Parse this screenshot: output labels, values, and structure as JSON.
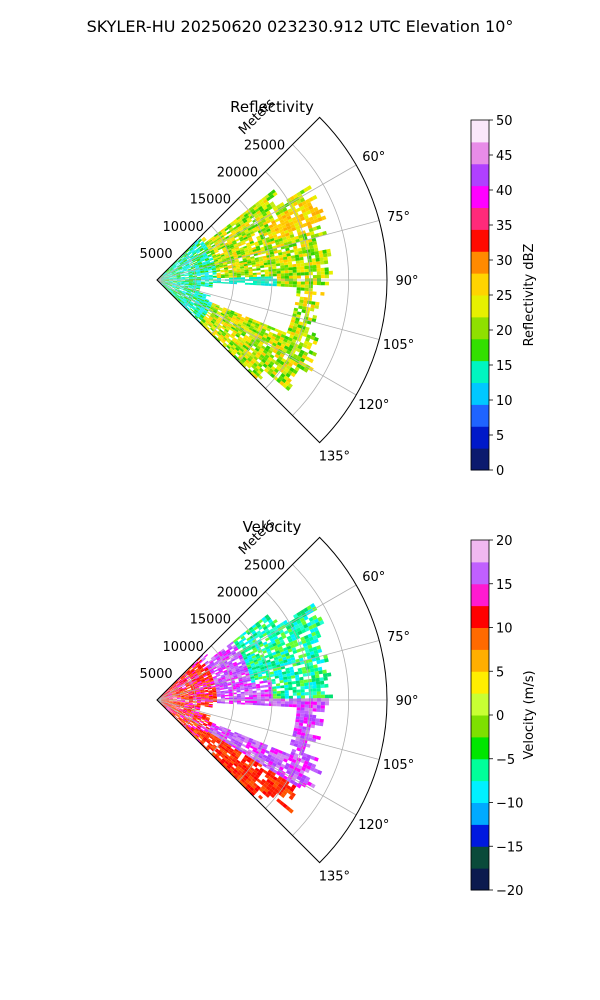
{
  "suptitle": "SKYLER-HU  20250620  023230.912 UTC Elevation 10°",
  "chart_data": [
    {
      "type": "polar-sector",
      "title": "Reflectivity",
      "radial_label": "Meters",
      "r_ticks": [
        "5000",
        "10000",
        "15000",
        "20000",
        "25000"
      ],
      "r_values": [
        5000,
        10000,
        15000,
        20000,
        25000
      ],
      "r_max": 30000,
      "theta_range_deg": [
        45,
        135
      ],
      "theta_ticks": [
        "60°",
        "75°",
        "90°",
        "105°",
        "120°",
        "135°"
      ],
      "theta_values": [
        60,
        75,
        90,
        105,
        120,
        135
      ],
      "grid": true,
      "colorbar": {
        "label": "Reflectivity dBZ",
        "ticks": [
          "0",
          "5",
          "10",
          "15",
          "20",
          "25",
          "30",
          "35",
          "40",
          "45",
          "50"
        ],
        "min": 0,
        "max": 50,
        "colors": [
          "#0b1a6e",
          "#0019c9",
          "#1f64ff",
          "#00c8ff",
          "#00f5c0",
          "#33e000",
          "#8fe000",
          "#e6f000",
          "#ffd400",
          "#ff8a00",
          "#ff0a00",
          "#ff2a7a",
          "#ff00ff",
          "#b040ff",
          "#e88ce8",
          "#fbe8fb"
        ]
      }
    },
    {
      "type": "polar-sector",
      "title": "Velocity",
      "radial_label": "Meters",
      "r_ticks": [
        "5000",
        "10000",
        "15000",
        "20000",
        "25000"
      ],
      "r_values": [
        5000,
        10000,
        15000,
        20000,
        25000
      ],
      "r_max": 30000,
      "theta_range_deg": [
        45,
        135
      ],
      "theta_ticks": [
        "60°",
        "75°",
        "90°",
        "105°",
        "120°",
        "135°"
      ],
      "theta_values": [
        60,
        75,
        90,
        105,
        120,
        135
      ],
      "grid": true,
      "colorbar": {
        "label": "Velocity (m/s)",
        "ticks": [
          "−20",
          "−15",
          "−10",
          "−5",
          "0",
          "5",
          "10",
          "15",
          "20"
        ],
        "min": -20,
        "max": 20,
        "colors": [
          "#0b1a4e",
          "#0a4a3a",
          "#0019e0",
          "#00aaff",
          "#00f0ff",
          "#00ff9a",
          "#00e600",
          "#7ee000",
          "#c8ff33",
          "#ffee00",
          "#ffae00",
          "#ff6a00",
          "#ff0000",
          "#ff1ad0",
          "#c060ff",
          "#f0b8f0"
        ]
      }
    }
  ]
}
